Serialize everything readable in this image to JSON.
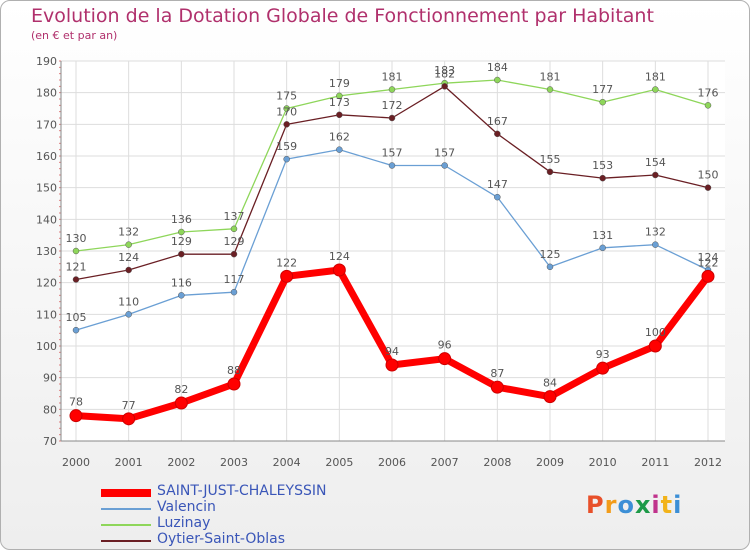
{
  "header": {
    "title": "Evolution de la Dotation Globale de Fonctionnement par Habitant",
    "subtitle": "(en € et par an)"
  },
  "logo": {
    "text": "Proxiti",
    "colors": [
      "#e8502a",
      "#f29c1a",
      "#3c8fd6",
      "#1d9a48",
      "#c0338c",
      "#f2b31a",
      "#3c8fd6"
    ]
  },
  "chart_data": {
    "type": "line",
    "x": [
      "2000",
      "2001",
      "2002",
      "2003",
      "2004",
      "2005",
      "2006",
      "2007",
      "2008",
      "2009",
      "2010",
      "2011",
      "2012"
    ],
    "ylim": [
      70,
      190
    ],
    "yticks": [
      70,
      80,
      90,
      100,
      110,
      120,
      130,
      140,
      150,
      160,
      170,
      180,
      190
    ],
    "grid": true,
    "legend_position": "bottom-left",
    "series": [
      {
        "name": "SAINT-JUST-CHALEYSSIN",
        "color": "#ff0000",
        "values": [
          78,
          77,
          82,
          88,
          122,
          124,
          94,
          96,
          87,
          84,
          93,
          100,
          122
        ]
      },
      {
        "name": "Valencin",
        "color": "#6a9fd4",
        "values": [
          105,
          110,
          116,
          117,
          159,
          162,
          157,
          157,
          147,
          125,
          131,
          132,
          124
        ]
      },
      {
        "name": "Luzinay",
        "color": "#8ed65a",
        "values": [
          130,
          132,
          136,
          137,
          175,
          179,
          181,
          183,
          184,
          181,
          177,
          181,
          176
        ]
      },
      {
        "name": "Oytier-Saint-Oblas",
        "color": "#6a1f24",
        "values": [
          121,
          124,
          129,
          129,
          170,
          173,
          172,
          182,
          167,
          155,
          153,
          154,
          150
        ]
      }
    ]
  }
}
